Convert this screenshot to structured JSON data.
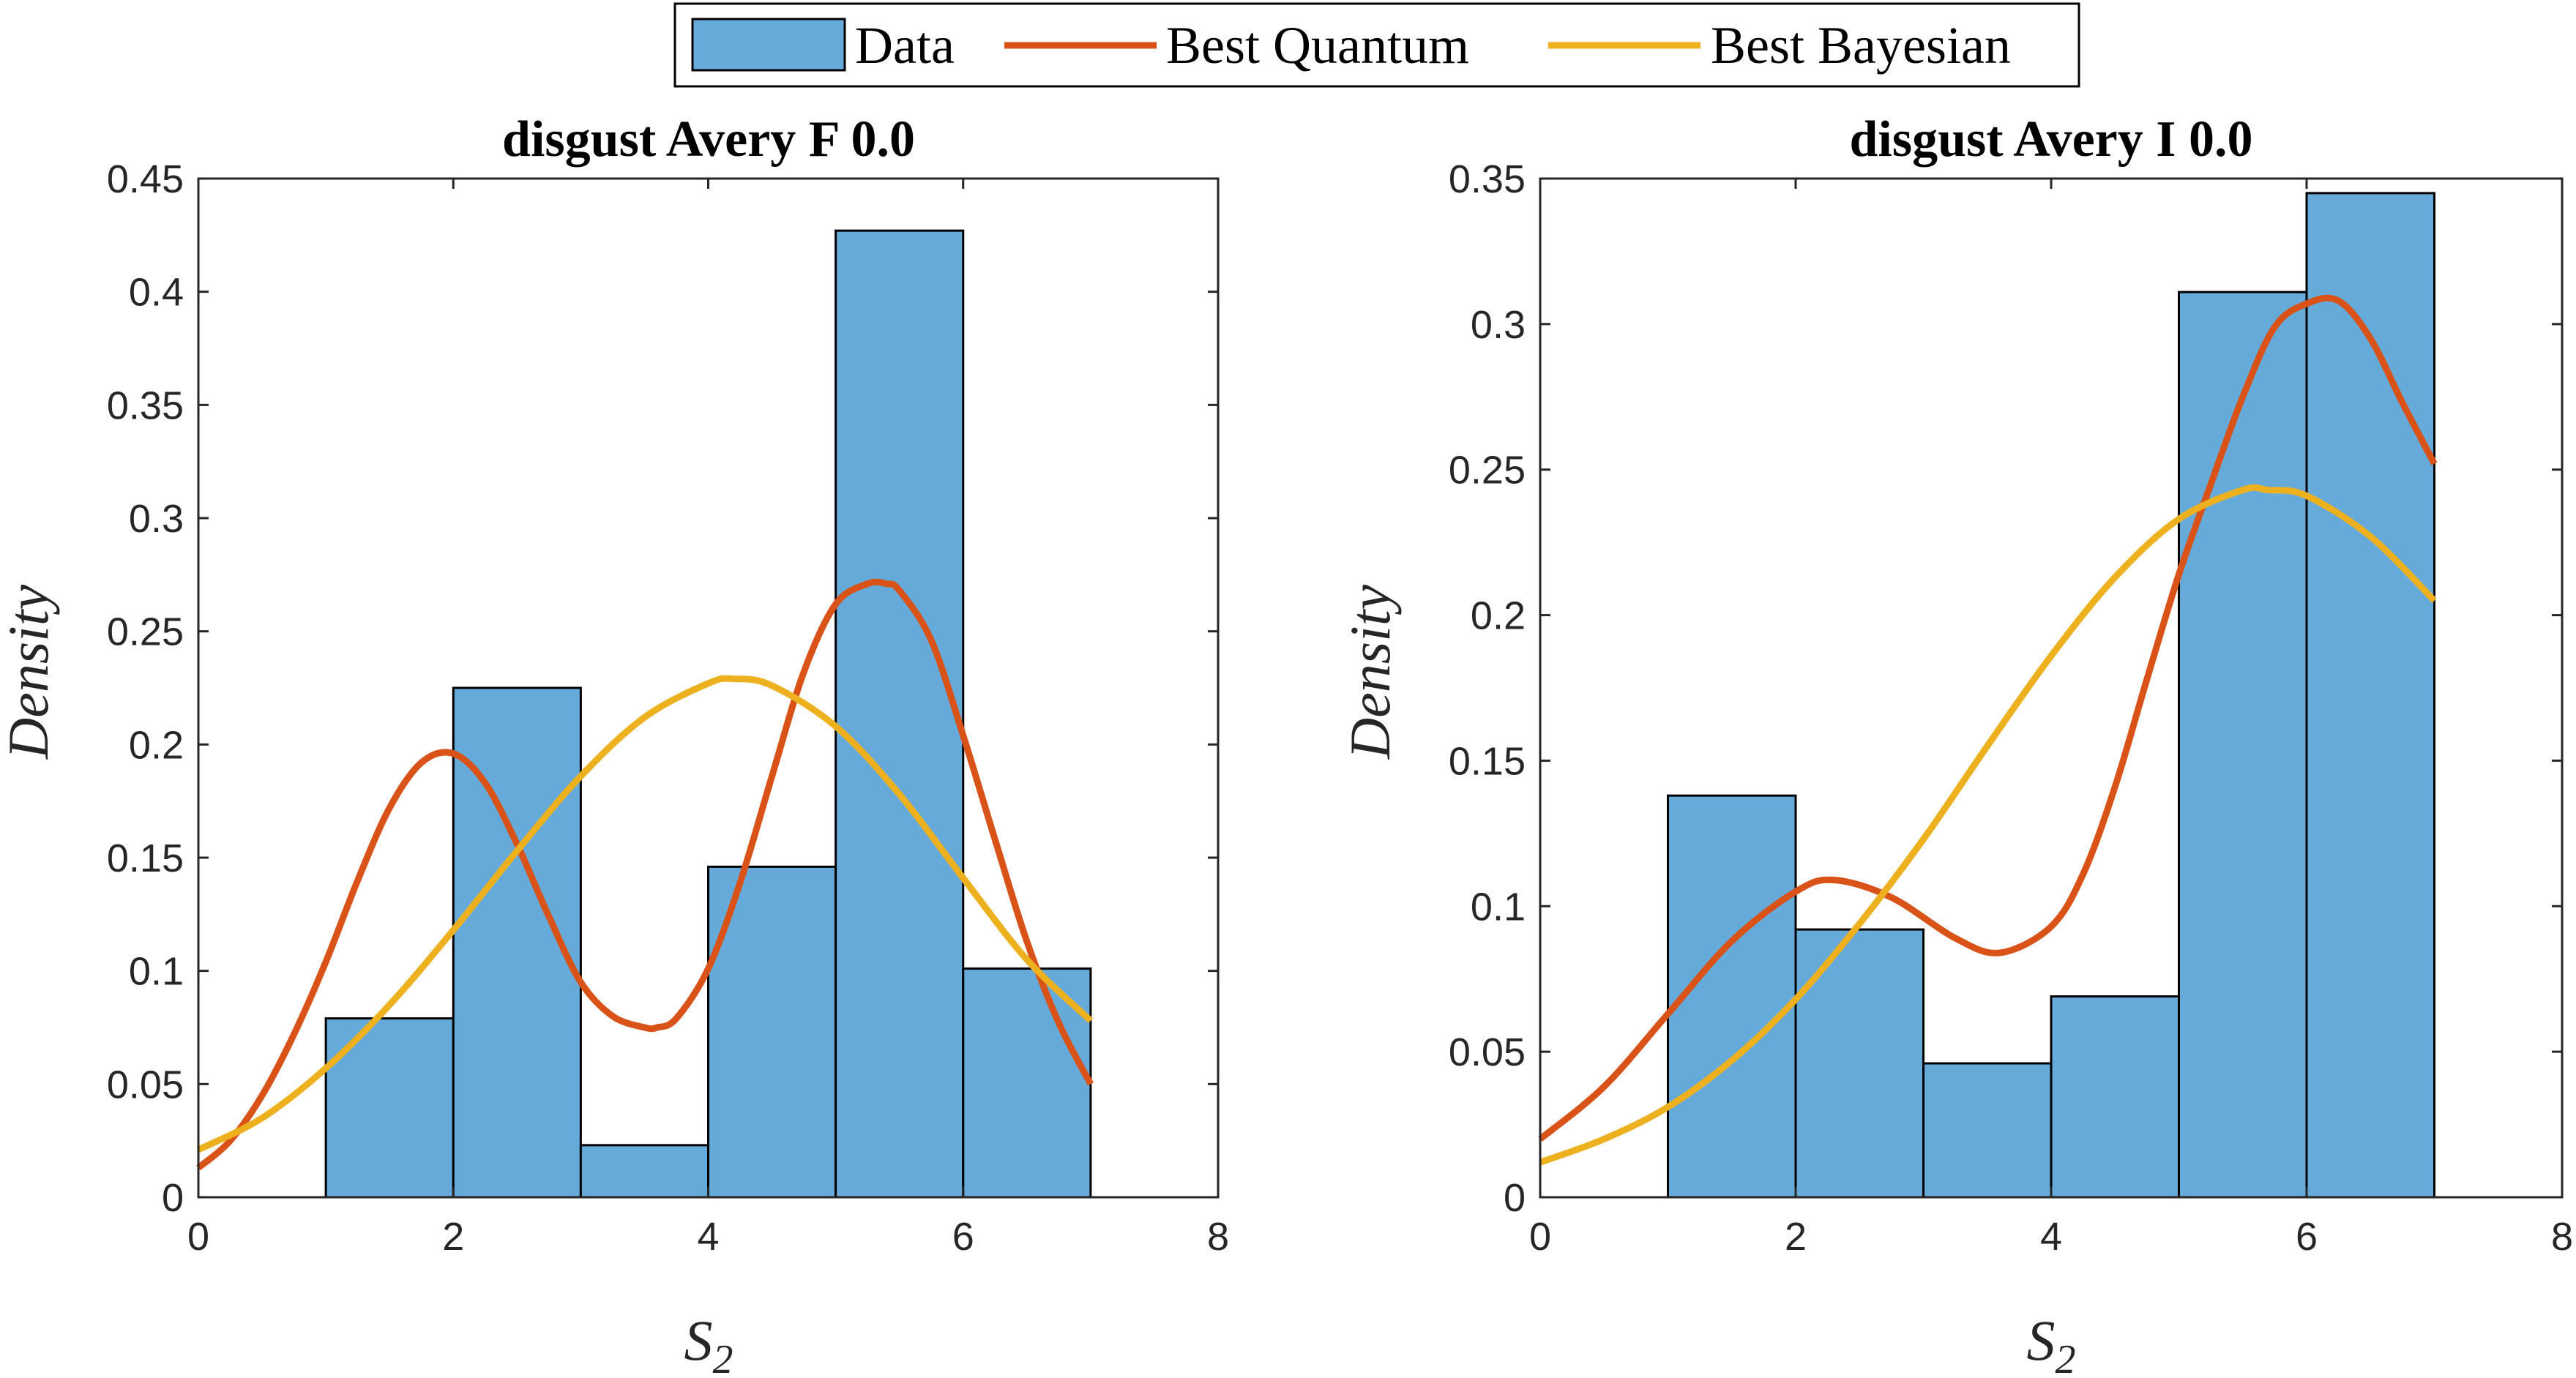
{
  "colors": {
    "data": "#66AADA",
    "quantum": "#D95319",
    "bayesian": "#EDB120",
    "axis": "#262626"
  },
  "legend": {
    "placement": "top-center",
    "entries": [
      {
        "label": "Data",
        "style": "patch",
        "color": "#66AADA"
      },
      {
        "label": "Best Quantum",
        "style": "line",
        "color": "#D95319"
      },
      {
        "label": "Best Bayesian",
        "style": "line",
        "color": "#EDB120"
      }
    ]
  },
  "chart_data": [
    {
      "type": "bar",
      "title": "disgust Avery F 0.0",
      "xlabel": "S",
      "xlabel_sub": "2",
      "ylabel": "Density",
      "xlim": [
        0,
        8
      ],
      "ylim": [
        0,
        0.45
      ],
      "xticks": [
        0,
        2,
        4,
        6,
        8
      ],
      "yticks": [
        0,
        0.05,
        0.1,
        0.15,
        0.2,
        0.25,
        0.3,
        0.35,
        0.4,
        0.45
      ],
      "grid": false,
      "bins": [
        {
          "x0": 1,
          "x1": 2,
          "value": 0.079
        },
        {
          "x0": 2,
          "x1": 3,
          "value": 0.225
        },
        {
          "x0": 3,
          "x1": 4,
          "value": 0.023
        },
        {
          "x0": 4,
          "x1": 5,
          "value": 0.146
        },
        {
          "x0": 5,
          "x1": 6,
          "value": 0.427
        },
        {
          "x0": 6,
          "x1": 7,
          "value": 0.101
        }
      ],
      "series": [
        {
          "name": "Best Quantum",
          "type": "line",
          "color": "#D95319",
          "x": [
            0,
            0.25,
            0.5,
            0.75,
            1,
            1.25,
            1.5,
            1.75,
            2,
            2.25,
            2.5,
            2.75,
            3,
            3.25,
            3.5,
            3.6,
            3.75,
            4,
            4.25,
            4.5,
            4.75,
            5,
            5.25,
            5.4,
            5.5,
            5.75,
            6,
            6.25,
            6.5,
            6.75,
            7
          ],
          "y": [
            0.013,
            0.025,
            0.045,
            0.072,
            0.104,
            0.14,
            0.172,
            0.192,
            0.196,
            0.183,
            0.156,
            0.124,
            0.095,
            0.08,
            0.075,
            0.075,
            0.079,
            0.101,
            0.139,
            0.186,
            0.232,
            0.262,
            0.271,
            0.271,
            0.268,
            0.246,
            0.204,
            0.158,
            0.113,
            0.077,
            0.05
          ]
        },
        {
          "name": "Best Bayesian",
          "type": "line",
          "color": "#EDB120",
          "x": [
            0,
            0.5,
            1,
            1.5,
            2,
            2.5,
            3,
            3.5,
            4,
            4.2,
            4.5,
            5,
            5.5,
            6,
            6.5,
            7
          ],
          "y": [
            0.021,
            0.035,
            0.057,
            0.085,
            0.118,
            0.153,
            0.186,
            0.212,
            0.227,
            0.229,
            0.226,
            0.208,
            0.178,
            0.141,
            0.105,
            0.078
          ]
        }
      ]
    },
    {
      "type": "bar",
      "title": "disgust Avery I 0.0",
      "xlabel": "S",
      "xlabel_sub": "2",
      "ylabel": "Density",
      "xlim": [
        0,
        8
      ],
      "ylim": [
        0,
        0.35
      ],
      "xticks": [
        0,
        2,
        4,
        6,
        8
      ],
      "yticks": [
        0,
        0.05,
        0.1,
        0.15,
        0.2,
        0.25,
        0.3,
        0.35
      ],
      "grid": false,
      "bins": [
        {
          "x0": 1,
          "x1": 2,
          "value": 0.138
        },
        {
          "x0": 2,
          "x1": 3,
          "value": 0.092
        },
        {
          "x0": 3,
          "x1": 4,
          "value": 0.046
        },
        {
          "x0": 4,
          "x1": 5,
          "value": 0.069
        },
        {
          "x0": 5,
          "x1": 6,
          "value": 0.311
        },
        {
          "x0": 6,
          "x1": 7,
          "value": 0.345
        }
      ],
      "series": [
        {
          "name": "Best Quantum",
          "type": "line",
          "color": "#D95319",
          "x": [
            0,
            0.5,
            1,
            1.5,
            2,
            2.3,
            2.75,
            3.25,
            3.6,
            4,
            4.25,
            4.5,
            4.75,
            5,
            5.25,
            5.5,
            5.75,
            6,
            6.25,
            6.5,
            6.75,
            7
          ],
          "y": [
            0.02,
            0.038,
            0.063,
            0.088,
            0.105,
            0.109,
            0.103,
            0.089,
            0.084,
            0.093,
            0.111,
            0.141,
            0.178,
            0.214,
            0.245,
            0.275,
            0.299,
            0.307,
            0.308,
            0.295,
            0.273,
            0.252
          ]
        },
        {
          "name": "Best Bayesian",
          "type": "line",
          "color": "#EDB120",
          "x": [
            0,
            0.5,
            1,
            1.5,
            2,
            2.5,
            3,
            3.5,
            4,
            4.5,
            5,
            5.5,
            5.7,
            6,
            6.5,
            7
          ],
          "y": [
            0.012,
            0.02,
            0.031,
            0.047,
            0.068,
            0.094,
            0.123,
            0.155,
            0.186,
            0.213,
            0.233,
            0.243,
            0.243,
            0.241,
            0.227,
            0.205
          ]
        }
      ]
    }
  ]
}
